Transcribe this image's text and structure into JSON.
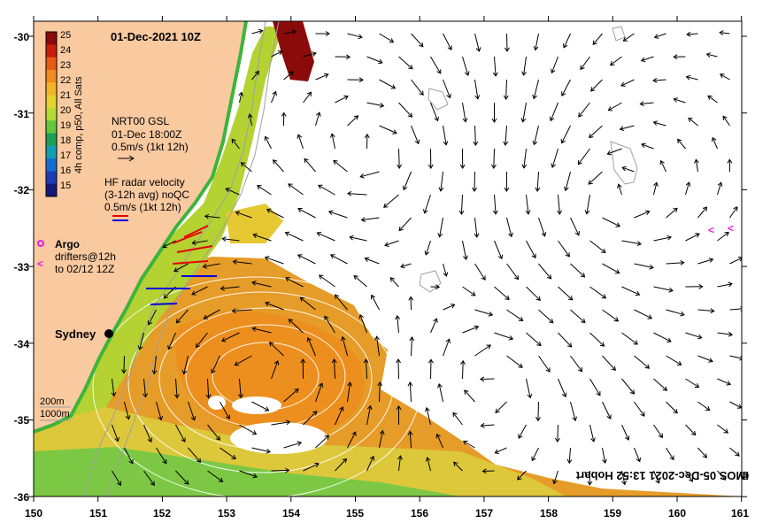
{
  "map": {
    "title": "01-Dec-2021 10Z",
    "credit": "IMOS 05-Dec-2021 13:52 Hobart",
    "credit_symbol": "©",
    "lon_labels": [
      "150",
      "151",
      "152",
      "153",
      "154",
      "155",
      "156",
      "157",
      "158",
      "159",
      "160",
      "161"
    ],
    "lat_labels": [
      "-30",
      "-31",
      "-32",
      "-33",
      "-34",
      "-35",
      "-36"
    ],
    "colorbar": {
      "ticks": [
        "25",
        "24",
        "23",
        "22",
        "21",
        "20",
        "19",
        "18",
        "17",
        "16",
        "15"
      ],
      "colors": [
        "#8b0a0a",
        "#c81e0a",
        "#e65a14",
        "#f08c1e",
        "#f5b428",
        "#e6d22d",
        "#b4dc32",
        "#64c83c",
        "#1ea05a",
        "#14a0b4",
        "#146ed2",
        "#1e3cb4",
        "#14187a"
      ],
      "label": "4h comp, p50, All Sats"
    },
    "legend": {
      "gsl_title": "NRT00 GSL",
      "gsl_time": "01-Dec 18:00Z",
      "gsl_scale": "0.5m/s (1kt 12h)",
      "hf_title": "HF radar velocity",
      "hf_sub": "(3-12h avg) noQC",
      "hf_scale": "0.5m/s (1kt 12h)",
      "argo": "Argo",
      "drifters_1": "drifters@12h",
      "drifters_2": "to 02/12 12Z",
      "depth_1": "200m",
      "depth_2": "1000m"
    },
    "city": "Sydney",
    "colors": {
      "land": "#f9c9a0",
      "ocean": "#ffffff",
      "argo": "#e61ee6",
      "hf_red": "#e60000",
      "hf_blue": "#0000dc",
      "sst_warm": "#e69c28",
      "sst_mid": "#d2c832",
      "sst_cool": "#46b43c",
      "hot": "#8b0a0a"
    }
  }
}
